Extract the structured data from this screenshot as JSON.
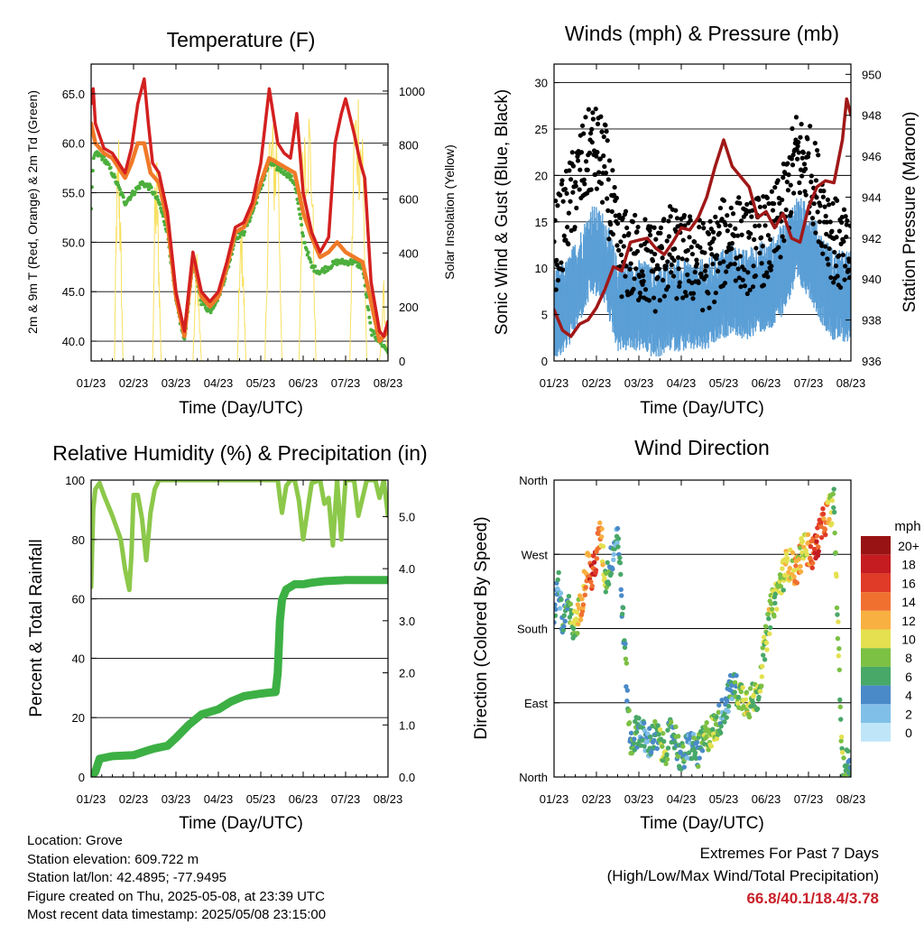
{
  "x_ticks": [
    "01/23",
    "02/23",
    "03/23",
    "04/23",
    "05/23",
    "06/23",
    "07/23",
    "08/23"
  ],
  "panels": {
    "temp": {
      "title": "Temperature (F)",
      "xlabel": "Time (Day/UTC)",
      "ylabel_left": "2m & 9m T (Red, Orange) & 2m Td (Green)",
      "ylabel_right": "Solar Insolation (Yellow)",
      "yticks_left": [
        "40.0",
        "45.0",
        "50.0",
        "55.0",
        "60.0",
        "65.0"
      ],
      "yticks_right": [
        "0",
        "200",
        "400",
        "600",
        "800",
        "1000"
      ]
    },
    "wind": {
      "title": "Winds (mph) & Pressure (mb)",
      "xlabel": "Time (Day/UTC)",
      "ylabel_left": "Sonic Wind & Gust (Blue, Black)",
      "ylabel_right": "Station Pressure (Maroon)",
      "yticks_left": [
        "0",
        "5",
        "10",
        "15",
        "20",
        "25",
        "30"
      ],
      "yticks_right": [
        "936",
        "938",
        "940",
        "942",
        "944",
        "946",
        "948",
        "950"
      ]
    },
    "rh": {
      "title": "Relative Humidity (%) & Precipitation (in)",
      "xlabel": "Time (Day/UTC)",
      "ylabel_left": "Percent & Total Rainfall",
      "yticks_left": [
        "0",
        "20",
        "40",
        "60",
        "80",
        "100"
      ],
      "yticks_right": [
        "0.0",
        "1.0",
        "2.0",
        "3.0",
        "4.0",
        "5.0"
      ]
    },
    "dir": {
      "title": "Wind Direction",
      "xlabel": "Time (Day/UTC)",
      "ylabel_left": "Direction (Colored By Speed)",
      "yticks_left": [
        "North",
        "East",
        "South",
        "West",
        "North"
      ],
      "legend_title": "mph",
      "legend_labels": [
        "20+",
        "18",
        "16",
        "14",
        "12",
        "10",
        "8",
        "6",
        "4",
        "2",
        "0"
      ]
    }
  },
  "colors": {
    "temp2m": "#d32020",
    "temp9m": "#f07a28",
    "dewpoint": "#4caf3c",
    "solar": "#f8e060",
    "gust": "#000000",
    "wind": "#5b9fd6",
    "pressure": "#a01818",
    "rh": "#8cc84a",
    "precip": "#3cb044",
    "speed_scale": [
      "#bfe6f8",
      "#80bfe8",
      "#4a8ac8",
      "#48a868",
      "#7cc044",
      "#e4e050",
      "#f8b040",
      "#f07030",
      "#e03a28",
      "#c41c20",
      "#981414"
    ]
  },
  "chart_data": [
    {
      "type": "line",
      "title": "Temperature (F)",
      "xlabel": "Time (Day/UTC)",
      "ylabel": "2m & 9m T (Red, Orange) & 2m Td (Green)",
      "ylim": [
        38,
        68
      ],
      "y2label": "Solar Insolation (Yellow)",
      "y2lim": [
        0,
        1100
      ],
      "categories": [
        "01/23",
        "02/23",
        "03/23",
        "04/23",
        "05/23",
        "06/23",
        "07/23",
        "08/23"
      ],
      "series": [
        {
          "x": [
            0,
            0.05,
            0.1,
            0.3,
            0.5,
            0.8,
            0.95,
            1.1,
            1.25,
            1.35,
            1.45,
            1.6,
            1.8,
            2.0,
            2.2,
            2.4,
            2.6,
            2.8,
            3.0,
            3.2,
            3.4,
            3.6,
            3.8,
            4.0,
            4.2,
            4.4,
            4.55,
            4.7,
            4.85,
            5.0,
            5.2,
            5.4,
            5.6,
            5.75,
            5.9,
            6.0,
            6.2,
            6.35,
            6.45,
            6.6,
            6.8,
            6.9,
            7.0
          ],
          "y": [
            64,
            65.5,
            62,
            59.5,
            59,
            57,
            59.5,
            64,
            66.5,
            62,
            58,
            57,
            53,
            45,
            41,
            49,
            45,
            44,
            45,
            48,
            51.5,
            52,
            54,
            58,
            65.5,
            60,
            59,
            58.5,
            63,
            55,
            51,
            49,
            50.5,
            60,
            63,
            64.5,
            61,
            58,
            56.5,
            46,
            41,
            40.5,
            42
          ]
        },
        {
          "x": [
            0,
            0.1,
            0.3,
            0.5,
            0.8,
            0.95,
            1.1,
            1.25,
            1.4,
            1.6,
            1.8,
            2.0,
            2.2,
            2.4,
            2.6,
            2.8,
            3.0,
            3.2,
            3.4,
            3.6,
            3.8,
            4.0,
            4.2,
            4.4,
            4.6,
            4.8,
            5.0,
            5.2,
            5.4,
            5.6,
            5.8,
            6.0,
            6.2,
            6.4,
            6.6,
            6.8,
            7.0
          ],
          "y": [
            62,
            60,
            59,
            58.5,
            56.5,
            58,
            60,
            60,
            57,
            56,
            52,
            44.5,
            40.5,
            48.5,
            44.5,
            43.5,
            44.5,
            47.5,
            51,
            51.5,
            53.5,
            56,
            58.5,
            58,
            57.5,
            57,
            53,
            50.5,
            48.5,
            49,
            50,
            49,
            48.5,
            48,
            44,
            40,
            41
          ]
        },
        {
          "x": [
            0,
            0.05,
            0.1,
            0.3,
            0.5,
            0.8,
            1.0,
            1.2,
            1.4,
            1.6,
            1.8,
            2.0,
            2.2,
            2.4,
            2.6,
            2.8,
            3.0,
            3.2,
            3.4,
            3.6,
            3.8,
            4.0,
            4.2,
            4.4,
            4.6,
            4.8,
            5.0,
            5.2,
            5.4,
            5.6,
            5.8,
            6.0,
            6.2,
            6.4,
            6.6,
            6.8,
            7.0
          ],
          "y": [
            53.5,
            58,
            59,
            58.5,
            57,
            54,
            55,
            56,
            55.5,
            54,
            51,
            44,
            40,
            48,
            44,
            43,
            44.5,
            47,
            50.5,
            51,
            53,
            55.5,
            58,
            57.5,
            57,
            56,
            50.5,
            47.5,
            47,
            47.5,
            48,
            48,
            48,
            47.5,
            41,
            40,
            39
          ]
        },
        {
          "x": [
            0.55,
            0.6,
            0.65,
            0.7,
            0.75,
            1.45,
            1.5,
            1.55,
            1.6,
            1.65,
            2.4,
            2.45,
            2.5,
            2.55,
            2.6,
            3.45,
            3.5,
            3.55,
            3.6,
            3.65,
            4.1,
            4.2,
            4.3,
            4.4,
            4.5,
            4.9,
            5.0,
            5.1,
            5.2,
            5.3,
            6.1,
            6.2,
            6.3,
            6.4,
            6.5,
            6.8,
            6.9,
            7.0
          ],
          "y": [
            0,
            700,
            900,
            500,
            0,
            0,
            650,
            800,
            400,
            0,
            0,
            300,
            450,
            200,
            0,
            0,
            400,
            550,
            300,
            0,
            0,
            950,
            900,
            1000,
            0,
            0,
            980,
            1050,
            900,
            0,
            0,
            1000,
            1080,
            950,
            0,
            0,
            300,
            0
          ]
        }
      ]
    },
    {
      "type": "scatter",
      "title": "Winds (mph) & Pressure (mb)",
      "xlabel": "Time (Day/UTC)",
      "ylabel": "Sonic Wind & Gust (Blue, Black)",
      "ylim": [
        0,
        32
      ],
      "y2label": "Station Pressure (Maroon)",
      "y2lim": [
        936,
        950.5
      ],
      "categories": [
        "01/23",
        "02/23",
        "03/23",
        "04/23",
        "05/23",
        "06/23",
        "07/23",
        "08/23"
      ],
      "series": [
        {
          "x": [
            0,
            0.3,
            0.6,
            0.9,
            1.2,
            1.5,
            1.8,
            2.1,
            2.4,
            2.7,
            3.0,
            3.3,
            3.6,
            3.9,
            4.2,
            4.5,
            4.8,
            5.1,
            5.4,
            5.7,
            6.0,
            6.3,
            6.6,
            6.9,
            7.0
          ],
          "y": [
            13,
            17,
            21,
            24,
            22,
            13,
            12,
            12,
            11,
            13,
            12,
            12,
            11,
            13,
            15,
            13,
            14,
            14,
            17,
            23,
            22,
            18,
            14,
            12,
            12
          ]
        },
        {
          "x": [
            0,
            0.3,
            0.6,
            0.9,
            1.2,
            1.5,
            1.8,
            2.1,
            2.4,
            2.7,
            3.0,
            3.3,
            3.6,
            3.9,
            4.2,
            4.5,
            4.8,
            5.1,
            5.4,
            5.7,
            6.0,
            6.3,
            6.6,
            6.9,
            7.0
          ],
          "y": [
            5,
            6,
            9,
            12,
            11,
            6,
            6,
            6,
            5,
            6,
            6,
            6,
            6,
            7,
            8,
            7,
            8,
            8,
            10,
            13,
            12,
            9,
            7,
            7,
            7
          ]
        },
        {
          "x": [
            0,
            0.2,
            0.4,
            0.6,
            0.8,
            1.0,
            1.2,
            1.4,
            1.6,
            1.8,
            2.0,
            2.2,
            2.4,
            2.6,
            2.8,
            3.0,
            3.2,
            3.4,
            3.6,
            3.8,
            4.0,
            4.2,
            4.4,
            4.6,
            4.8,
            5.0,
            5.2,
            5.4,
            5.6,
            5.8,
            6.0,
            6.2,
            6.4,
            6.6,
            6.8,
            6.9,
            7.0
          ],
          "y": [
            938.5,
            937.5,
            937.2,
            937.8,
            938,
            938.6,
            939.5,
            940.6,
            940.4,
            941.8,
            941.9,
            942,
            941.5,
            941.2,
            941.8,
            942.5,
            942.4,
            943,
            944,
            945.5,
            946.8,
            945.5,
            945,
            944.5,
            943,
            943.3,
            942.5,
            943.2,
            942,
            941.8,
            943.5,
            944.5,
            944.8,
            944.7,
            946.8,
            948.8,
            948
          ]
        }
      ]
    },
    {
      "type": "line",
      "title": "Relative Humidity (%) & Precipitation (in)",
      "xlabel": "Time (Day/UTC)",
      "ylabel": "Percent & Total Rainfall",
      "ylim": [
        0,
        100
      ],
      "y2lim": [
        0,
        5.7
      ],
      "categories": [
        "01/23",
        "02/23",
        "03/23",
        "04/23",
        "05/23",
        "06/23",
        "07/23",
        "08/23"
      ],
      "series": [
        {
          "x": [
            0,
            0.05,
            0.1,
            0.2,
            0.3,
            0.5,
            0.7,
            0.8,
            0.9,
            0.95,
            1.0,
            1.1,
            1.2,
            1.3,
            1.4,
            1.5,
            1.6,
            1.8,
            2.0,
            2.4,
            2.8,
            3.2,
            3.6,
            4.0,
            4.2,
            4.4,
            4.45,
            4.5,
            4.6,
            4.7,
            4.8,
            4.9,
            5.0,
            5.2,
            5.4,
            5.5,
            5.6,
            5.7,
            5.8,
            5.9,
            6.0,
            6.2,
            6.3,
            6.5,
            6.7,
            6.8,
            6.9,
            7.0
          ],
          "y": [
            64,
            90,
            97,
            99,
            95,
            88,
            80,
            70,
            63,
            75,
            95,
            95,
            87,
            73,
            89,
            97,
            100,
            100,
            100,
            100,
            100,
            100,
            100,
            100,
            100,
            100,
            94,
            89,
            98,
            100,
            100,
            93,
            80,
            99,
            100,
            92,
            94,
            78,
            100,
            80,
            100,
            100,
            88,
            100,
            100,
            94,
            100,
            88
          ]
        },
        {
          "x": [
            0,
            0.05,
            0.1,
            0.2,
            0.5,
            1.0,
            1.3,
            1.5,
            1.8,
            2.0,
            2.3,
            2.6,
            3.0,
            3.3,
            3.6,
            4.0,
            4.2,
            4.35,
            4.4,
            4.45,
            4.5,
            4.6,
            4.8,
            5.0,
            5.2,
            5.5,
            6.0,
            6.5,
            7.0
          ],
          "y": [
            0,
            0.05,
            0.1,
            0.35,
            0.4,
            0.42,
            0.5,
            0.55,
            0.6,
            0.75,
            1.0,
            1.2,
            1.3,
            1.45,
            1.55,
            1.6,
            1.62,
            1.63,
            2.0,
            3.0,
            3.4,
            3.6,
            3.7,
            3.7,
            3.73,
            3.76,
            3.78,
            3.78,
            3.78
          ]
        }
      ]
    },
    {
      "type": "scatter",
      "title": "Wind Direction",
      "xlabel": "Time (Day/UTC)",
      "ylabel": "Direction (Colored By Speed)",
      "ylim": [
        0,
        360
      ],
      "categories": [
        "01/23",
        "02/23",
        "03/23",
        "04/23",
        "05/23",
        "06/23",
        "07/23",
        "08/23"
      ],
      "series": [
        {
          "x": [
            0,
            0.1,
            0.2,
            0.3,
            0.45,
            0.6,
            0.8,
            0.9,
            1.0,
            1.1,
            1.2,
            1.3,
            1.5,
            1.8,
            2.0,
            2.2,
            2.4,
            2.6,
            2.8,
            3.0,
            3.2,
            3.4,
            3.6,
            3.8,
            4.0,
            4.2,
            4.4,
            4.6,
            4.8,
            4.95,
            5.1,
            5.3,
            5.5,
            5.7,
            5.9,
            6.1,
            6.3,
            6.45,
            6.6,
            6.8,
            6.9,
            7.0
          ],
          "y": [
            200,
            240,
            180,
            210,
            180,
            200,
            260,
            240,
            270,
            300,
            240,
            250,
            300,
            40,
            60,
            40,
            50,
            30,
            60,
            20,
            40,
            30,
            50,
            60,
            80,
            110,
            100,
            90,
            100,
            150,
            200,
            230,
            260,
            250,
            280,
            270,
            300,
            320,
            330,
            10,
            15,
            20
          ]
        },
        {
          "x": [
            0,
            0.1,
            0.2,
            0.3,
            0.45,
            0.6,
            0.8,
            0.9,
            1.0,
            1.1,
            1.2,
            1.3,
            1.5,
            1.8,
            2.0,
            2.2,
            2.4,
            2.6,
            2.8,
            3.0,
            3.2,
            3.4,
            3.6,
            3.8,
            4.0,
            4.2,
            4.4,
            4.6,
            4.8,
            4.95,
            5.1,
            5.3,
            5.5,
            5.7,
            5.9,
            6.1,
            6.3,
            6.45,
            6.6,
            6.8,
            6.9,
            7.0
          ],
          "y": [
            4,
            4,
            6,
            5,
            8,
            10,
            14,
            16,
            16,
            12,
            8,
            5,
            4,
            6,
            5,
            4,
            6,
            8,
            5,
            6,
            4,
            6,
            8,
            8,
            4,
            5,
            8,
            9,
            8,
            8,
            9,
            8,
            10,
            12,
            10,
            16,
            16,
            12,
            8,
            8,
            6,
            6
          ]
        }
      ]
    }
  ],
  "info": {
    "location": "Location: Grove",
    "elevation": "Station elevation: 609.722 m",
    "latlon": "Station lat/lon: 42.4895; -77.9495",
    "created": "Figure created on Thu, 2025-05-08, at 23:39 UTC",
    "recent": "Most recent data timestamp: 2025/05/08 23:15:00"
  },
  "extremes": {
    "title": "Extremes For Past 7 Days",
    "subtitle": "(High/Low/Max Wind/Total Precipitation)",
    "values": "66.8/40.1/18.4/3.78"
  }
}
